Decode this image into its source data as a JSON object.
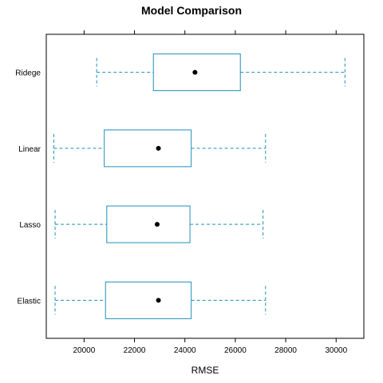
{
  "chart_data": {
    "type": "boxplot",
    "title": "Model Comparison",
    "xlabel": "RMSE",
    "ylabel": "",
    "xlim": [
      18500,
      31100
    ],
    "xticks": [
      20000,
      22000,
      24000,
      26000,
      28000,
      30000
    ],
    "xtick_labels": [
      "20000",
      "22000",
      "24000",
      "26000",
      "28000",
      "30000"
    ],
    "categories": [
      "Ridege",
      "Linear",
      "Lasso",
      "Elastic"
    ],
    "boxes": [
      {
        "label": "Ridege",
        "min": 20500,
        "q1": 22750,
        "median": 24400,
        "q3": 26200,
        "max": 30350
      },
      {
        "label": "Linear",
        "min": 18800,
        "q1": 20800,
        "median": 22950,
        "q3": 24250,
        "max": 27200
      },
      {
        "label": "Lasso",
        "min": 18850,
        "q1": 20900,
        "median": 22900,
        "q3": 24200,
        "max": 27100
      },
      {
        "label": "Elastic",
        "min": 18850,
        "q1": 20850,
        "median": 22950,
        "q3": 24250,
        "max": 27200
      }
    ],
    "box_color": "#1f8fbf",
    "median_color": "#000000",
    "grid": false,
    "legend": "none"
  }
}
